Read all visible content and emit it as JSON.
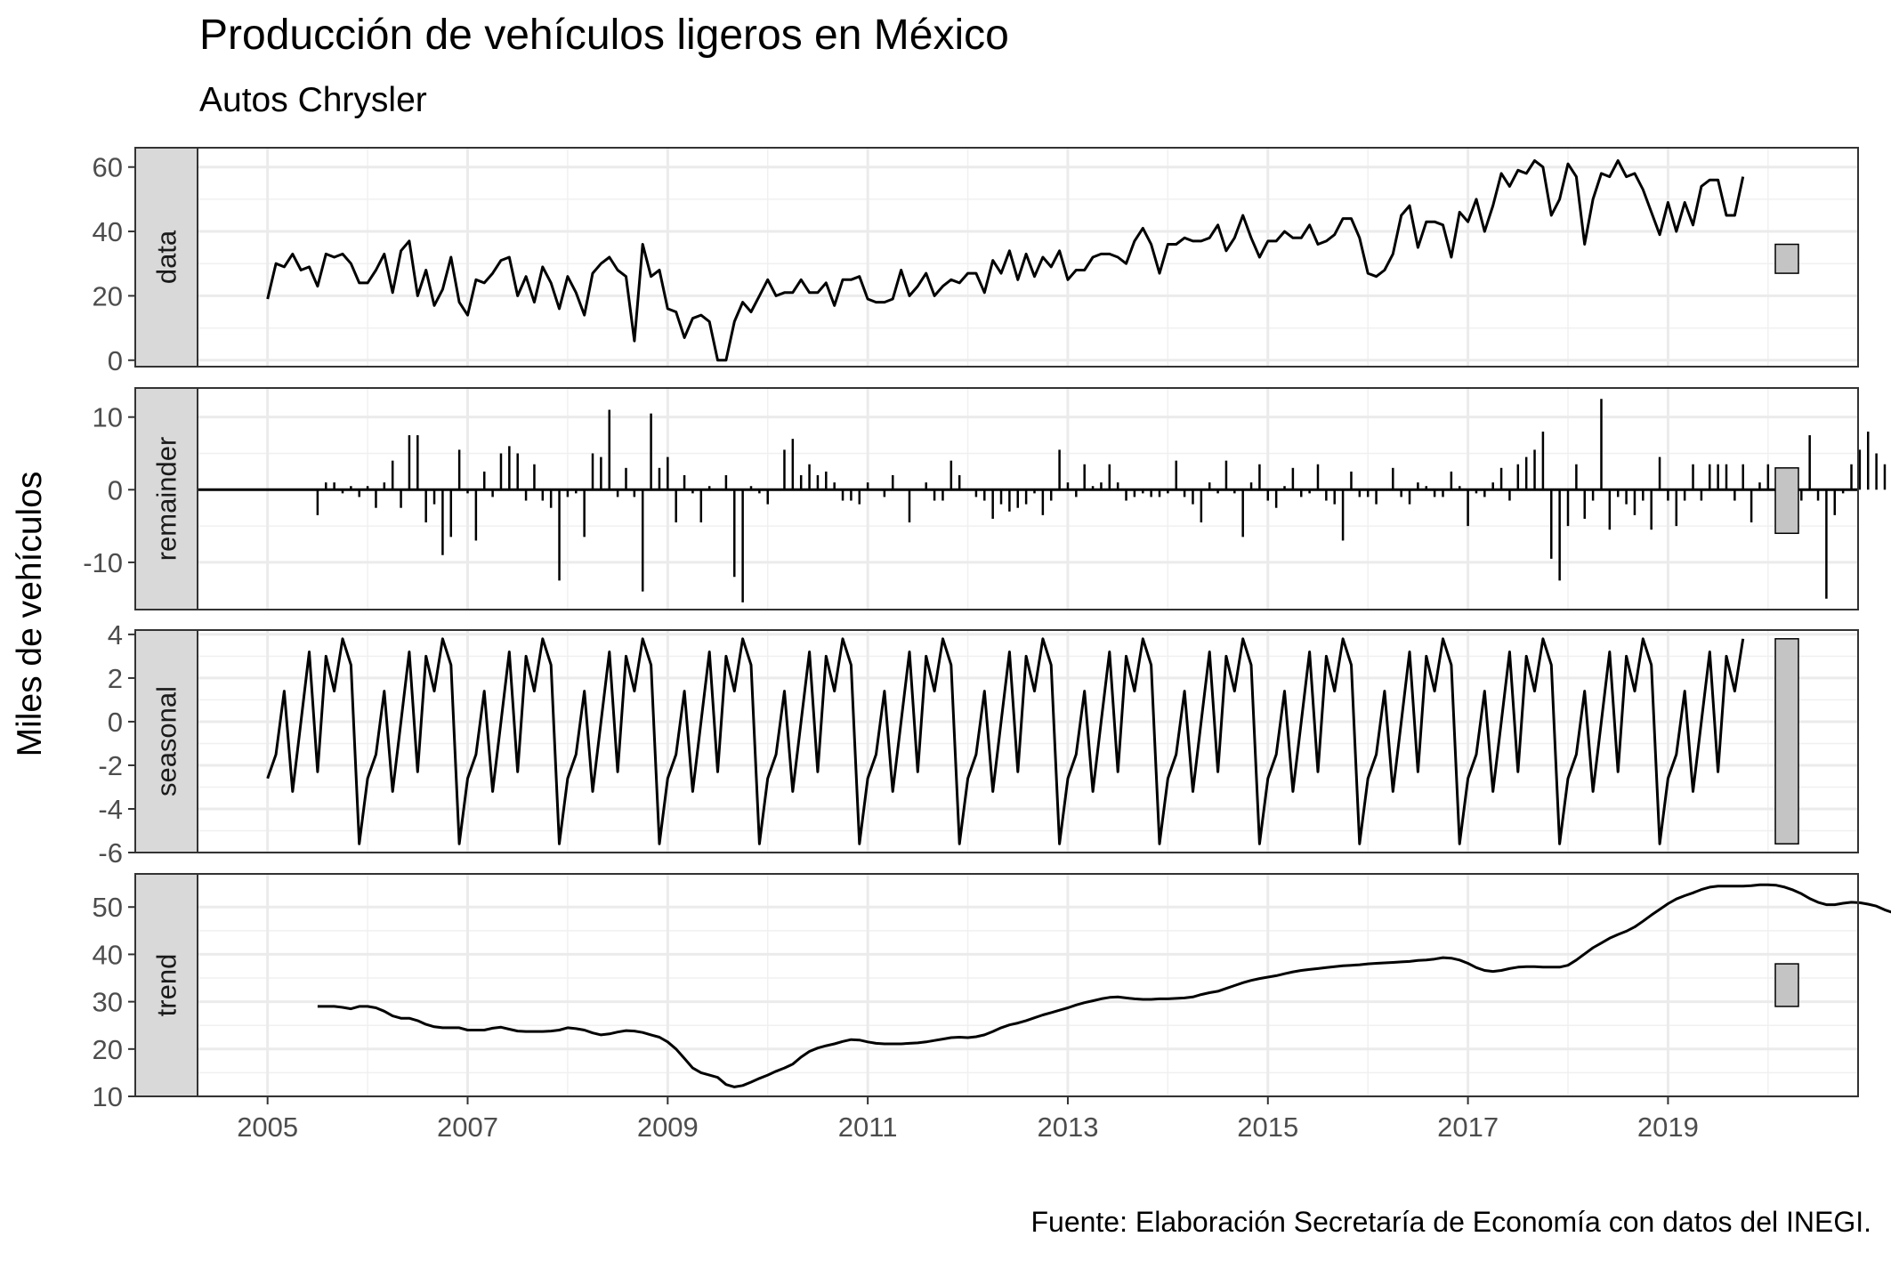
{
  "chart_data": {
    "type": "line",
    "title": "Producción de vehículos ligeros en México",
    "subtitle": "Autos Chrysler",
    "ylabel": "Miles de vehículos",
    "caption": "Fuente: Elaboración Secretaría de Economía con datos del INEGI.",
    "x_tick_labels": [
      "2005",
      "2007",
      "2009",
      "2011",
      "2013",
      "2015",
      "2017",
      "2019"
    ],
    "x_start": "2005-01",
    "x_end": "2019-10",
    "frequency": "monthly",
    "panels": [
      {
        "name": "data",
        "type": "line",
        "ylim": [
          -2,
          66
        ],
        "y_ticks": [
          0,
          20,
          40,
          60
        ],
        "range_bar": [
          27,
          36
        ],
        "values": [
          19,
          30,
          29,
          33,
          28,
          29,
          23,
          33,
          32,
          33,
          30,
          24,
          24,
          28,
          33,
          21,
          34,
          37,
          20,
          28,
          17,
          22,
          32,
          18,
          14,
          25,
          24,
          27,
          31,
          32,
          20,
          26,
          18,
          29,
          24,
          16,
          26,
          21,
          14,
          27,
          30,
          32,
          28,
          26,
          6,
          36,
          26,
          28,
          16,
          15,
          7,
          13,
          14,
          12,
          0,
          0,
          12,
          18,
          15,
          20,
          25,
          20,
          21,
          21,
          25,
          21,
          21,
          24,
          17,
          25,
          25,
          26,
          19,
          18,
          18,
          19,
          28,
          20,
          23,
          27,
          20,
          23,
          25,
          24,
          27,
          27,
          21,
          31,
          27,
          34,
          25,
          33,
          26,
          32,
          29,
          34,
          25,
          28,
          28,
          32,
          33,
          33,
          32,
          30,
          37,
          41,
          36,
          27,
          36,
          36,
          38,
          37,
          37,
          38,
          42,
          34,
          38,
          45,
          38,
          32,
          37,
          37,
          40,
          38,
          38,
          42,
          36,
          37,
          39,
          44,
          44,
          38,
          27,
          26,
          28,
          33,
          45,
          48,
          35,
          43,
          43,
          42,
          32,
          46,
          43,
          50,
          40,
          48,
          58,
          54,
          59,
          58,
          62,
          60,
          45,
          50,
          61,
          57,
          36,
          50,
          58,
          57,
          62,
          57,
          58,
          53,
          46,
          39,
          49,
          40,
          49,
          42,
          54,
          56,
          56,
          45,
          45,
          57
        ]
      },
      {
        "name": "remainder",
        "type": "bar",
        "ylim": [
          -16.5,
          14
        ],
        "y_ticks": [
          -10,
          0,
          10
        ],
        "y_tick_labels": [
          "-10",
          "0",
          "10"
        ],
        "range_bar": [
          -6,
          3
        ],
        "x_start": "2005-07",
        "values": [
          -3.5,
          1,
          1,
          -0.5,
          0.5,
          -1,
          0.5,
          -2.5,
          1,
          4,
          -2.5,
          7.5,
          7.5,
          -4.5,
          -2,
          -9,
          -6.5,
          5.5,
          -0.5,
          -7,
          2.5,
          -1,
          5,
          6,
          5,
          -1.5,
          3.5,
          -1.5,
          -2.5,
          -12.5,
          -1,
          -0.5,
          -6.5,
          5,
          4.5,
          11,
          -1,
          3,
          -1,
          -14,
          10.5,
          3,
          4.5,
          -4.5,
          2,
          -0.5,
          -4.5,
          0.5,
          0,
          2,
          -12,
          -15.5,
          0.5,
          -0.5,
          -2,
          0,
          5.5,
          7,
          2,
          3.5,
          2,
          2.5,
          1,
          -1.5,
          -1.5,
          -2,
          1,
          0,
          -1,
          2,
          0,
          -4.5,
          0,
          1,
          -1.5,
          -1.5,
          4,
          2,
          0,
          -1,
          -1.5,
          -4,
          -2,
          -3,
          -2.5,
          -2,
          -0.5,
          -3.5,
          -1.5,
          5.5,
          1,
          -1,
          3.5,
          0.5,
          1,
          3.5,
          1,
          -1.5,
          -1,
          -0.5,
          -1,
          -1,
          -0.5,
          4,
          -1,
          -2,
          -4.5,
          1,
          -0.5,
          4,
          -0.5,
          -6.5,
          1,
          3.5,
          -1.5,
          -2.5,
          0.5,
          3,
          -1,
          -0.5,
          3.5,
          -1.5,
          -2,
          -7,
          2.5,
          -1,
          -1,
          -2,
          0,
          3,
          -1,
          -2,
          1,
          0.5,
          -1,
          -1,
          2.5,
          0.5,
          -5,
          -0.5,
          -1,
          1,
          3,
          -1.5,
          3.5,
          4.5,
          5.5,
          8,
          -9.5,
          -12.5,
          -5,
          3.5,
          -4,
          -1.5,
          12.5,
          -5.5,
          -1,
          -2,
          -3.5,
          -1.5,
          -5.5,
          4.5,
          -1.5,
          -5,
          -1.5,
          3.5,
          -1.5,
          3.5,
          3.5,
          3.5,
          -1.5,
          3.5,
          -4.5,
          1,
          3.5,
          -2.5,
          -3,
          1,
          -1.5,
          7.5,
          -1.5,
          -15,
          -3.5,
          -0.5,
          3.5,
          5.5,
          8,
          5,
          3.5,
          -5.5,
          -7,
          1,
          -6,
          -8.5,
          1,
          -1.5,
          -2.5,
          -3
        ]
      },
      {
        "name": "seasonal",
        "type": "line",
        "ylim": [
          -6,
          4.2
        ],
        "y_ticks": [
          -6,
          -4,
          -2,
          0,
          2,
          4
        ],
        "y_tick_labels": [
          "-6",
          "-4",
          "-2",
          "0",
          "2",
          "4"
        ],
        "range_bar": [
          -5.6,
          3.8
        ],
        "pattern": [
          -2.6,
          -1.5,
          1.4,
          -3.2,
          0,
          3.2,
          -2.3,
          3.0,
          1.4,
          3.8,
          2.6,
          -5.6
        ]
      },
      {
        "name": "trend",
        "type": "line",
        "ylim": [
          10,
          57
        ],
        "y_ticks": [
          10,
          20,
          30,
          40,
          50
        ],
        "range_bar": [
          29,
          38
        ],
        "x_start": "2005-07",
        "values": [
          29,
          29,
          29,
          28.8,
          28.5,
          29,
          29,
          28.7,
          28,
          27,
          26.5,
          26.5,
          26,
          25.2,
          24.7,
          24.5,
          24.5,
          24.5,
          24,
          24,
          24,
          24.4,
          24.6,
          24.2,
          23.8,
          23.7,
          23.7,
          23.7,
          23.8,
          24,
          24.5,
          24.3,
          24,
          23.4,
          23,
          23.2,
          23.6,
          23.9,
          23.8,
          23.5,
          23,
          22.5,
          21.5,
          20,
          18,
          16,
          15,
          14.5,
          14,
          12.5,
          12,
          12.3,
          13,
          13.8,
          14.5,
          15.3,
          16,
          16.8,
          18.3,
          19.5,
          20.2,
          20.7,
          21.1,
          21.6,
          22,
          21.9,
          21.5,
          21.2,
          21.1,
          21.1,
          21.1,
          21.2,
          21.3,
          21.5,
          21.8,
          22.1,
          22.4,
          22.5,
          22.4,
          22.6,
          23,
          23.7,
          24.5,
          25.1,
          25.5,
          26,
          26.6,
          27.2,
          27.7,
          28.2,
          28.7,
          29.3,
          29.8,
          30.2,
          30.6,
          30.9,
          31,
          30.8,
          30.6,
          30.5,
          30.5,
          30.6,
          30.6,
          30.7,
          30.8,
          31,
          31.5,
          31.9,
          32.2,
          32.8,
          33.4,
          34,
          34.5,
          34.9,
          35.2,
          35.5,
          35.9,
          36.3,
          36.6,
          36.8,
          37,
          37.2,
          37.4,
          37.6,
          37.7,
          37.8,
          38,
          38.1,
          38.2,
          38.3,
          38.4,
          38.5,
          38.7,
          38.8,
          39,
          39.3,
          39.2,
          38.8,
          38.1,
          37.2,
          36.6,
          36.4,
          36.6,
          37,
          37.3,
          37.4,
          37.4,
          37.3,
          37.3,
          37.3,
          37.7,
          38.8,
          40.1,
          41.4,
          42.4,
          43.4,
          44.2,
          44.9,
          45.8,
          47,
          48.3,
          49.5,
          50.7,
          51.7,
          52.4,
          53,
          53.7,
          54.2,
          54.4,
          54.4,
          54.4,
          54.4,
          54.5,
          54.7,
          54.7,
          54.6,
          54.2,
          53.6,
          52.8,
          51.8,
          51,
          50.5,
          50.5,
          50.8,
          51,
          50.9,
          50.6,
          50.2,
          49.4,
          48.8,
          48.4
        ]
      }
    ]
  }
}
